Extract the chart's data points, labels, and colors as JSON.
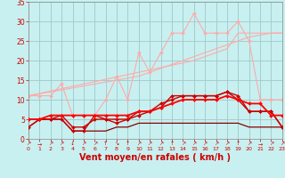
{
  "background_color": "#c8f0f0",
  "grid_color": "#a0c8c8",
  "xlabel": "Vent moyen/en rafales ( km/h )",
  "xlim": [
    0,
    23
  ],
  "ylim": [
    0,
    35
  ],
  "yticks": [
    0,
    5,
    10,
    15,
    20,
    25,
    30,
    35
  ],
  "xticks": [
    0,
    1,
    2,
    3,
    4,
    5,
    6,
    7,
    8,
    9,
    10,
    11,
    12,
    13,
    14,
    15,
    16,
    17,
    18,
    19,
    20,
    21,
    22,
    23
  ],
  "series": [
    {
      "x": [
        0,
        1,
        2,
        3,
        4,
        5,
        6,
        7,
        8,
        9,
        10,
        11,
        12,
        13,
        14,
        15,
        16,
        17,
        18,
        19,
        20,
        21,
        22,
        23
      ],
      "y": [
        11,
        11.6,
        12.2,
        12.8,
        13.4,
        14.0,
        14.6,
        15.2,
        15.8,
        16.4,
        17.0,
        17.6,
        18.2,
        18.8,
        19.4,
        20.0,
        21.0,
        22.0,
        23.0,
        27.0,
        27.0,
        27.0,
        27.0,
        27.0
      ],
      "color": "#ffaaaa",
      "linewidth": 0.8,
      "marker": null,
      "markersize": 0,
      "zorder": 2
    },
    {
      "x": [
        0,
        1,
        2,
        3,
        4,
        5,
        6,
        7,
        8,
        9,
        10,
        11,
        12,
        13,
        14,
        15,
        16,
        17,
        18,
        19,
        20,
        21,
        22,
        23
      ],
      "y": [
        11,
        11.5,
        12.0,
        12.5,
        13.0,
        13.5,
        14.0,
        14.5,
        15.0,
        15.5,
        16.0,
        17.0,
        18.0,
        19.0,
        20.0,
        21.0,
        22.0,
        23.0,
        24.0,
        25.0,
        26.0,
        26.5,
        27.0,
        27.0
      ],
      "color": "#ffaaaa",
      "linewidth": 0.8,
      "marker": null,
      "markersize": 0,
      "zorder": 2
    },
    {
      "x": [
        0,
        1,
        2,
        3,
        4,
        5,
        6,
        7,
        8,
        9,
        10,
        11,
        12,
        13,
        14,
        15,
        16,
        17,
        18,
        19,
        20,
        21,
        22,
        23
      ],
      "y": [
        11,
        11,
        11,
        14,
        6,
        6,
        6,
        10,
        16,
        10,
        22,
        17,
        22,
        27,
        27,
        32,
        27,
        27,
        27,
        30,
        25,
        10,
        10,
        10
      ],
      "color": "#ffaaaa",
      "linewidth": 0.8,
      "marker": "D",
      "markersize": 2,
      "zorder": 2
    },
    {
      "x": [
        0,
        1,
        2,
        3,
        4,
        5,
        6,
        7,
        8,
        9,
        10,
        11,
        12,
        13,
        14,
        15,
        16,
        17,
        18,
        19,
        20,
        21,
        22,
        23
      ],
      "y": [
        3,
        5,
        5,
        5,
        2,
        2,
        2,
        2,
        3,
        3,
        4,
        4,
        4,
        4,
        4,
        4,
        4,
        4,
        4,
        4,
        3,
        3,
        3,
        3
      ],
      "color": "#880000",
      "linewidth": 0.9,
      "marker": null,
      "markersize": 0,
      "zorder": 3
    },
    {
      "x": [
        0,
        1,
        2,
        3,
        4,
        5,
        6,
        7,
        8,
        9,
        10,
        11,
        12,
        13,
        14,
        15,
        16,
        17,
        18,
        19,
        20,
        21,
        22,
        23
      ],
      "y": [
        3,
        5,
        5,
        5,
        2,
        2,
        6,
        5,
        4,
        5,
        6,
        7,
        8,
        11,
        11,
        11,
        11,
        11,
        12,
        10,
        7,
        7,
        7,
        3
      ],
      "color": "#cc0000",
      "linewidth": 1.0,
      "marker": "D",
      "markersize": 2,
      "zorder": 4
    },
    {
      "x": [
        0,
        1,
        2,
        3,
        4,
        5,
        6,
        7,
        8,
        9,
        10,
        11,
        12,
        13,
        14,
        15,
        16,
        17,
        18,
        19,
        20,
        21,
        22,
        23
      ],
      "y": [
        5,
        5,
        5,
        6,
        3,
        3,
        5,
        5,
        5,
        5,
        7,
        7,
        9,
        10,
        11,
        11,
        11,
        11,
        12,
        11,
        7,
        7,
        7,
        3
      ],
      "color": "#cc0000",
      "linewidth": 1.0,
      "marker": "D",
      "markersize": 2,
      "zorder": 4
    },
    {
      "x": [
        0,
        1,
        2,
        3,
        4,
        5,
        6,
        7,
        8,
        9,
        10,
        11,
        12,
        13,
        14,
        15,
        16,
        17,
        18,
        19,
        20,
        21,
        22,
        23
      ],
      "y": [
        5,
        5,
        6,
        6,
        6,
        6,
        6,
        6,
        6,
        6,
        7,
        7,
        8,
        9,
        10,
        10,
        10,
        10,
        11,
        10,
        9,
        9,
        6,
        6
      ],
      "color": "#ff0000",
      "linewidth": 1.3,
      "marker": "D",
      "markersize": 2,
      "zorder": 5
    }
  ],
  "wind_arrows": [
    "↗",
    "→",
    "↗",
    "↗",
    "↓",
    "↗",
    "↗",
    "↑",
    "↘",
    "↑",
    "↗",
    "↗",
    "↗",
    "↑",
    "↗",
    "↗",
    "↗",
    "↗",
    "↗",
    "↑",
    "↗",
    "→",
    "↗",
    "↗"
  ],
  "arrow_fontsize": 4.5,
  "tick_fontsize": 5.5,
  "label_fontsize": 7,
  "tick_color": "#cc0000",
  "label_color": "#cc0000"
}
